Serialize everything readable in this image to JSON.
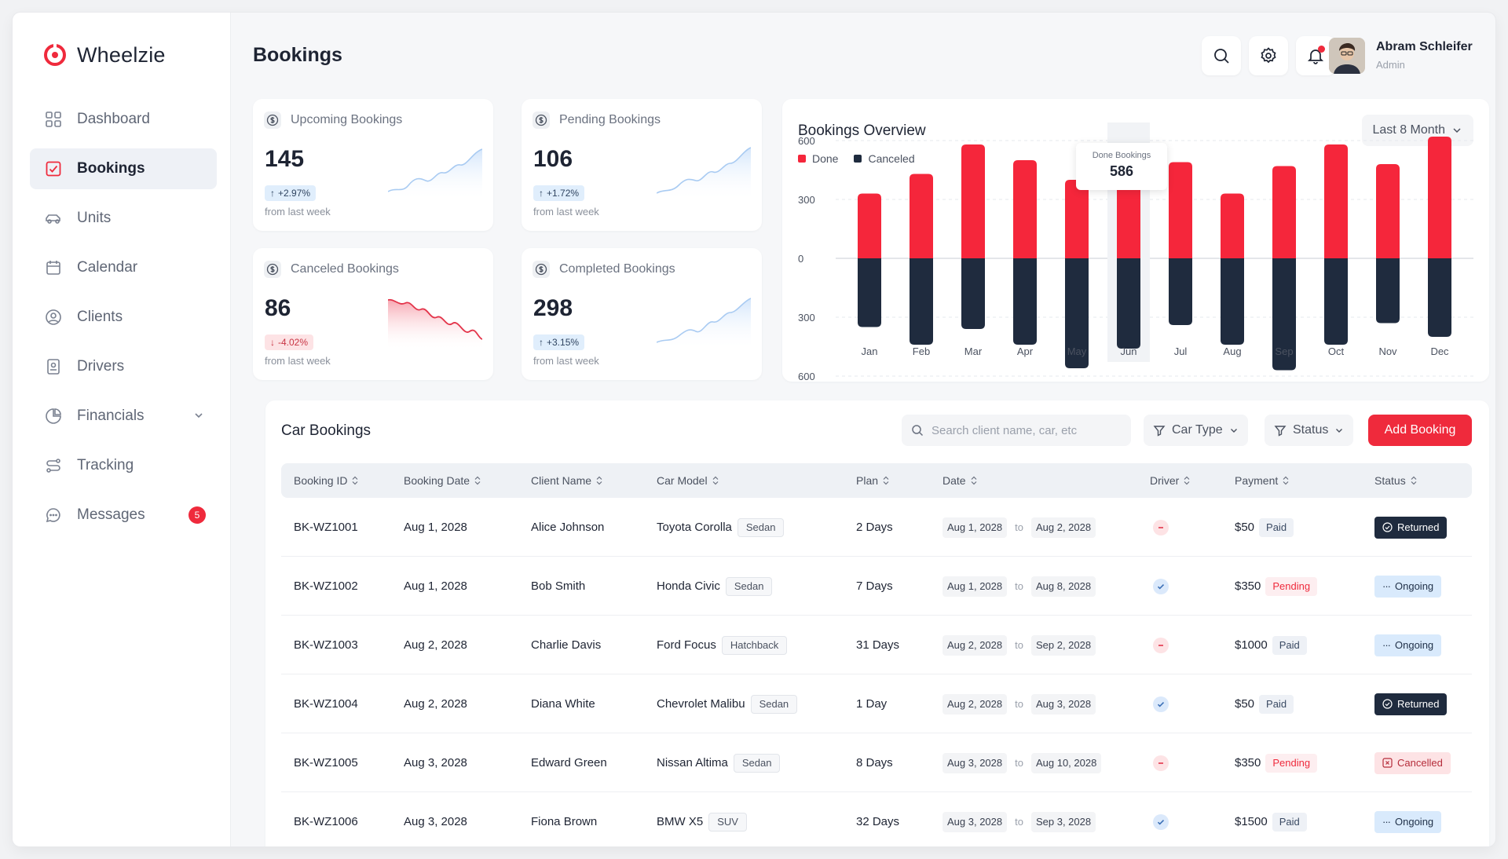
{
  "brand": {
    "name": "Wheelzie",
    "color": "#ef2a3c"
  },
  "sidebar": {
    "items": [
      {
        "label": "Dashboard",
        "icon": "dashboard-grid-icon",
        "active": false
      },
      {
        "label": "Bookings",
        "icon": "checkbox-icon",
        "active": true
      },
      {
        "label": "Units",
        "icon": "car-icon",
        "active": false
      },
      {
        "label": "Calendar",
        "icon": "calendar-icon",
        "active": false
      },
      {
        "label": "Clients",
        "icon": "user-circle-icon",
        "active": false
      },
      {
        "label": "Drivers",
        "icon": "id-badge-icon",
        "active": false
      },
      {
        "label": "Financials",
        "icon": "chart-pie-icon",
        "active": false,
        "expandable": true
      },
      {
        "label": "Tracking",
        "icon": "route-icon",
        "active": false
      },
      {
        "label": "Messages",
        "icon": "chat-bubble-icon",
        "active": false,
        "badge": "5"
      }
    ]
  },
  "header": {
    "title": "Bookings",
    "user": {
      "name": "Abram Schleifer",
      "role": "Admin"
    }
  },
  "stats": [
    {
      "label": "Upcoming Bookings",
      "value": "145",
      "change": "+2.97%",
      "direction": "up",
      "sub": "from last week"
    },
    {
      "label": "Pending Bookings",
      "value": "106",
      "change": "+1.72%",
      "direction": "up",
      "sub": "from last week"
    },
    {
      "label": "Canceled Bookings",
      "value": "86",
      "change": "-4.02%",
      "direction": "down",
      "sub": "from last week"
    },
    {
      "label": "Completed Bookings",
      "value": "298",
      "change": "+3.15%",
      "direction": "up",
      "sub": "from last week"
    }
  ],
  "overview": {
    "title": "Bookings Overview",
    "range_label": "Last 8 Month",
    "legend": [
      {
        "label": "Done",
        "color": "#f5263b"
      },
      {
        "label": "Canceled",
        "color": "#1f2b3e"
      }
    ],
    "tooltip": {
      "label": "Done Bookings",
      "value": "586"
    }
  },
  "chart_data": {
    "type": "bar",
    "categories": [
      "Jan",
      "Feb",
      "Mar",
      "Apr",
      "May",
      "Jun",
      "Jul",
      "Aug",
      "Sep",
      "Oct",
      "Nov",
      "Dec"
    ],
    "series": [
      {
        "name": "Done",
        "values": [
          330,
          430,
          580,
          500,
          400,
          586,
          490,
          330,
          470,
          580,
          480,
          620
        ]
      },
      {
        "name": "Canceled",
        "values": [
          350,
          440,
          360,
          440,
          560,
          460,
          340,
          440,
          570,
          440,
          330,
          400
        ]
      }
    ],
    "y_tick_labels": [
      "600",
      "300",
      "0",
      "300",
      "600"
    ],
    "ylim": [
      -600,
      600
    ],
    "highlighted_category": "Jun",
    "grid": true
  },
  "table": {
    "title": "Car Bookings",
    "search_placeholder": "Search client name, car, etc",
    "filters": [
      "Car Type",
      "Status"
    ],
    "add_label": "Add Booking",
    "to_label": "to",
    "columns": [
      "Booking ID",
      "Booking Date",
      "Client Name",
      "Car Model",
      "Plan",
      "Date",
      "Driver",
      "Payment",
      "Status"
    ],
    "rows": [
      {
        "id": "BK-WZ1001",
        "booking_date": "Aug 1, 2028",
        "client": "Alice Johnson",
        "car": "Toyota Corolla",
        "car_type": "Sedan",
        "plan": "2 Days",
        "from": "Aug 1, 2028",
        "to": "Aug 2, 2028",
        "driver": false,
        "amount": "$50",
        "payment": "Paid",
        "status": "Returned"
      },
      {
        "id": "BK-WZ1002",
        "booking_date": "Aug 1, 2028",
        "client": "Bob Smith",
        "car": "Honda Civic",
        "car_type": "Sedan",
        "plan": "7 Days",
        "from": "Aug 1, 2028",
        "to": "Aug 8, 2028",
        "driver": true,
        "amount": "$350",
        "payment": "Pending",
        "status": "Ongoing"
      },
      {
        "id": "BK-WZ1003",
        "booking_date": "Aug 2, 2028",
        "client": "Charlie Davis",
        "car": "Ford Focus",
        "car_type": "Hatchback",
        "plan": "31 Days",
        "from": "Aug 2, 2028",
        "to": "Sep 2, 2028",
        "driver": false,
        "amount": "$1000",
        "payment": "Paid",
        "status": "Ongoing"
      },
      {
        "id": "BK-WZ1004",
        "booking_date": "Aug 2, 2028",
        "client": "Diana White",
        "car": "Chevrolet Malibu",
        "car_type": "Sedan",
        "plan": "1 Day",
        "from": "Aug 2, 2028",
        "to": "Aug 3, 2028",
        "driver": true,
        "amount": "$50",
        "payment": "Paid",
        "status": "Returned"
      },
      {
        "id": "BK-WZ1005",
        "booking_date": "Aug 3, 2028",
        "client": "Edward Green",
        "car": "Nissan Altima",
        "car_type": "Sedan",
        "plan": "8 Days",
        "from": "Aug 3, 2028",
        "to": "Aug 10, 2028",
        "driver": false,
        "amount": "$350",
        "payment": "Pending",
        "status": "Cancelled"
      },
      {
        "id": "BK-WZ1006",
        "booking_date": "Aug 3, 2028",
        "client": "Fiona Brown",
        "car": "BMW X5",
        "car_type": "SUV",
        "plan": "32 Days",
        "from": "Aug 3, 2028",
        "to": "Sep 3, 2028",
        "driver": true,
        "amount": "$1500",
        "payment": "Paid",
        "status": "Ongoing"
      }
    ]
  }
}
